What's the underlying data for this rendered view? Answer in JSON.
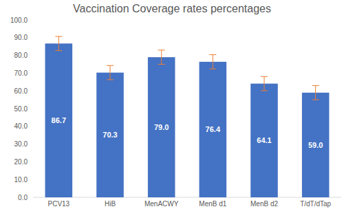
{
  "chart_data": {
    "type": "bar",
    "title": "Vaccination Coverage rates percentages",
    "categories": [
      "PCV13",
      "HiB",
      "MenACWY",
      "MenB d1",
      "MenB d2",
      "T/dT/dTap"
    ],
    "values": [
      86.7,
      70.3,
      79.0,
      76.4,
      64.1,
      59.0
    ],
    "value_labels": [
      "86.7",
      "70.3",
      "79.0",
      "76.4",
      "64.1",
      "59.0"
    ],
    "errors": [
      4,
      4,
      4,
      4,
      4,
      4
    ],
    "color": "#4472c4",
    "ylim": [
      0,
      100
    ],
    "yticks": [
      {
        "value": 0,
        "label": "0.0"
      },
      {
        "value": 10,
        "label": "10.0"
      },
      {
        "value": 20,
        "label": "20.0"
      },
      {
        "value": 30,
        "label": "30.0"
      },
      {
        "value": 40,
        "label": "40.0"
      },
      {
        "value": 50,
        "label": "50.0"
      },
      {
        "value": 60,
        "label": "60.0"
      },
      {
        "value": 70,
        "label": "70.0"
      },
      {
        "value": 80,
        "label": "80.0"
      },
      {
        "value": 90,
        "label": "90.0"
      },
      {
        "value": 100,
        "label": "100.0"
      }
    ],
    "grid": false,
    "data_labels": true
  }
}
